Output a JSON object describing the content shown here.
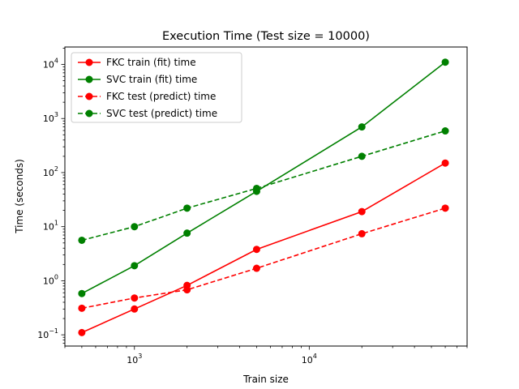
{
  "chart_data": {
    "type": "line",
    "title": "Execution Time (Test size = 10000)",
    "xlabel": "Train size",
    "ylabel": "Time (seconds)",
    "xscale": "log",
    "yscale": "log",
    "xlim": [
      400,
      80000
    ],
    "ylim": [
      0.062,
      21000
    ],
    "grid": false,
    "legend_position": "upper left",
    "x": [
      500,
      1000,
      2000,
      5000,
      20000,
      60000
    ],
    "x_ticks": [
      {
        "value": 1000,
        "base": "10",
        "exp": "3"
      },
      {
        "value": 10000,
        "base": "10",
        "exp": "4"
      }
    ],
    "y_ticks": [
      {
        "value": 0.1,
        "base": "10",
        "exp": "−1"
      },
      {
        "value": 1,
        "base": "10",
        "exp": "0"
      },
      {
        "value": 10,
        "base": "10",
        "exp": "1"
      },
      {
        "value": 100,
        "base": "10",
        "exp": "2"
      },
      {
        "value": 1000,
        "base": "10",
        "exp": "3"
      },
      {
        "value": 10000,
        "base": "10",
        "exp": "4"
      }
    ],
    "series": [
      {
        "name": "FKC train (fit) time",
        "color": "#ff0000",
        "dashed": false,
        "values": [
          0.11,
          0.3,
          0.82,
          3.8,
          19,
          150
        ]
      },
      {
        "name": "SVC train (fit) time",
        "color": "#008000",
        "dashed": false,
        "values": [
          0.58,
          1.9,
          7.6,
          45,
          700,
          11000
        ]
      },
      {
        "name": "FKC test (predict) time",
        "color": "#ff0000",
        "dashed": true,
        "values": [
          0.31,
          0.48,
          0.68,
          1.7,
          7.4,
          22
        ]
      },
      {
        "name": "SVC test (predict) time",
        "color": "#008000",
        "dashed": true,
        "values": [
          5.6,
          10,
          22,
          51,
          200,
          590
        ]
      }
    ]
  }
}
